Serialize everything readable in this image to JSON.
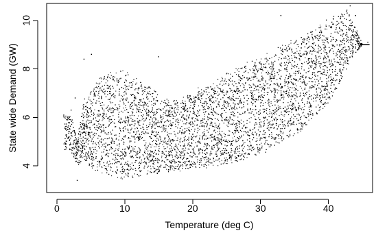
{
  "chart_data": {
    "type": "scatter",
    "title": "",
    "xlabel": "Temperature (deg C)",
    "ylabel": "State wide Demand (GW)",
    "xlim": [
      -1.5,
      46.5
    ],
    "ylim": [
      2.9,
      10.7
    ],
    "xticks": [
      0,
      10,
      20,
      30,
      40
    ],
    "yticks": [
      4,
      6,
      8,
      10
    ],
    "grid": false,
    "legend": "none",
    "marker_color": "#000000",
    "series": [
      {
        "name": "",
        "description_points": {
          "dense_core": [
            [
              2,
              4.6
            ],
            [
              2,
              6.2
            ],
            [
              3,
              4.0
            ],
            [
              3,
              5.2
            ],
            [
              4,
              4.2
            ],
            [
              4,
              6.8
            ],
            [
              5,
              3.9
            ],
            [
              5,
              7.2
            ],
            [
              6,
              3.7
            ],
            [
              6,
              7.6
            ],
            [
              7,
              3.6
            ],
            [
              7,
              7.8
            ],
            [
              8,
              3.5
            ],
            [
              8,
              7.9
            ],
            [
              9,
              3.5
            ],
            [
              9,
              8.0
            ],
            [
              10,
              3.4
            ],
            [
              10,
              7.9
            ],
            [
              11,
              3.4
            ],
            [
              11,
              7.8
            ],
            [
              12,
              3.5
            ],
            [
              12,
              7.6
            ],
            [
              13,
              3.6
            ],
            [
              13,
              7.4
            ],
            [
              14,
              3.6
            ],
            [
              14,
              7.2
            ],
            [
              15,
              3.6
            ],
            [
              15,
              7.0
            ],
            [
              16,
              3.7
            ],
            [
              16,
              6.8
            ],
            [
              17,
              3.7
            ],
            [
              17,
              6.7
            ],
            [
              18,
              3.7
            ],
            [
              18,
              6.8
            ],
            [
              19,
              3.8
            ],
            [
              19,
              6.9
            ],
            [
              20,
              3.8
            ],
            [
              20,
              7.1
            ],
            [
              22,
              3.9
            ],
            [
              22,
              7.4
            ],
            [
              24,
              4.0
            ],
            [
              24,
              7.7
            ],
            [
              26,
              4.1
            ],
            [
              26,
              8.0
            ],
            [
              28,
              4.2
            ],
            [
              28,
              8.3
            ],
            [
              30,
              4.4
            ],
            [
              30,
              8.5
            ],
            [
              32,
              4.7
            ],
            [
              32,
              8.8
            ],
            [
              34,
              5.0
            ],
            [
              34,
              9.1
            ],
            [
              36,
              5.4
            ],
            [
              36,
              9.4
            ],
            [
              38,
              5.9
            ],
            [
              38,
              9.7
            ],
            [
              40,
              6.5
            ],
            [
              40,
              10.1
            ],
            [
              42,
              7.4
            ],
            [
              42,
              10.4
            ],
            [
              43,
              8.2
            ],
            [
              43,
              10.5
            ],
            [
              45,
              9.0
            ],
            [
              46,
              9.0
            ]
          ]
        }
      }
    ]
  }
}
